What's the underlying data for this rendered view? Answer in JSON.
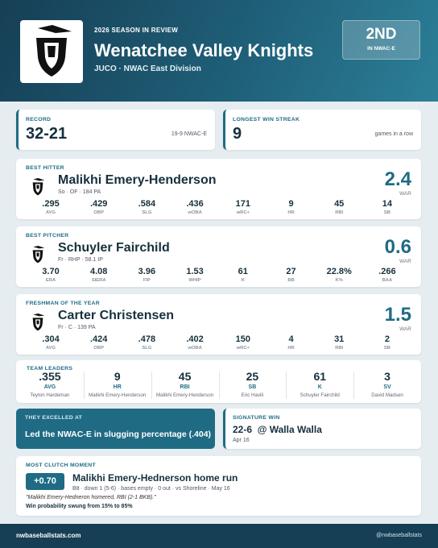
{
  "header": {
    "kicker": "2026 SEASON IN REVIEW",
    "title": "Wenatchee Valley Knights",
    "subtitle": "JUCO  ·  NWAC East Division",
    "rank": "2ND",
    "rank_label": "IN NWAC-E"
  },
  "record": {
    "label": "RECORD",
    "value": "32-21",
    "note": "19-9 NWAC-E"
  },
  "streak": {
    "label": "LONGEST WIN STREAK",
    "value": "9",
    "note": "games in a row"
  },
  "players": [
    {
      "label": "BEST HITTER",
      "name": "Malikhi Emery-Henderson",
      "meta": "So · OF · 184 PA",
      "war": "2.4",
      "war_label": "WAR",
      "stats": [
        {
          "value": ".295",
          "label": "AVG"
        },
        {
          "value": ".429",
          "label": "OBP"
        },
        {
          "value": ".584",
          "label": "SLG"
        },
        {
          "value": ".436",
          "label": "wOBA"
        },
        {
          "value": "171",
          "label": "wRC+"
        },
        {
          "value": "9",
          "label": "HR"
        },
        {
          "value": "45",
          "label": "RBI"
        },
        {
          "value": "14",
          "label": "SB"
        }
      ]
    },
    {
      "label": "BEST PITCHER",
      "name": "Schuyler Fairchild",
      "meta": "Fr · RHP · 58.1 IP",
      "war": "0.6",
      "war_label": "WAR",
      "stats": [
        {
          "value": "3.70",
          "label": "ERA"
        },
        {
          "value": "4.08",
          "label": "SIERA"
        },
        {
          "value": "3.96",
          "label": "FIP"
        },
        {
          "value": "1.53",
          "label": "WHIP"
        },
        {
          "value": "61",
          "label": "K"
        },
        {
          "value": "27",
          "label": "BB"
        },
        {
          "value": "22.8%",
          "label": "K%"
        },
        {
          "value": ".266",
          "label": "BAA"
        }
      ]
    },
    {
      "label": "FRESHMAN OF THE YEAR",
      "name": "Carter Christensen",
      "meta": "Fr · C · 139 PA",
      "war": "1.5",
      "war_label": "WAR",
      "stats": [
        {
          "value": ".304",
          "label": "AVG"
        },
        {
          "value": ".424",
          "label": "OBP"
        },
        {
          "value": ".478",
          "label": "SLG"
        },
        {
          "value": ".402",
          "label": "wOBA"
        },
        {
          "value": "150",
          "label": "wRC+"
        },
        {
          "value": "4",
          "label": "HR"
        },
        {
          "value": "31",
          "label": "RBI"
        },
        {
          "value": "2",
          "label": "SB"
        }
      ]
    }
  ],
  "team_leaders": {
    "label": "TEAM LEADERS",
    "items": [
      {
        "value": ".355",
        "stat": "AVG",
        "player": "Teyton Hardeman"
      },
      {
        "value": "9",
        "stat": "HR",
        "player": "Malikhi Emery-Henderson"
      },
      {
        "value": "45",
        "stat": "RBI",
        "player": "Malikhi Emery-Henderson"
      },
      {
        "value": "25",
        "stat": "SB",
        "player": "Eric Havili"
      },
      {
        "value": "61",
        "stat": "K",
        "player": "Schuyler Fairchild"
      },
      {
        "value": "3",
        "stat": "SV",
        "player": "David Madsen"
      }
    ]
  },
  "excelled": {
    "label": "THEY EXCELLED AT",
    "text": "Led the NWAC-E in slugging percentage (.404)"
  },
  "signature_win": {
    "label": "SIGNATURE WIN",
    "score": "22-6",
    "opponent": "@ Walla Walla",
    "date": "Apr 16"
  },
  "clutch": {
    "label": "MOST CLUTCH MOMENT",
    "wpa": "+0.70",
    "title": "Malikhi Emery-Hednerson home run",
    "details": "B8  ·  down 1 (5-6)  ·  bases empty  ·  0 out  ·  vs Shoreline  ·  May 16",
    "quote": "\"Malikhi Emery-Hedneron homered, RBI (2-1 BKB).\"",
    "swing": "Win probability swung from 15% to 85%"
  },
  "footer": {
    "site": "nwbaseballstats.com",
    "handle": "@nwbaseballstats"
  }
}
